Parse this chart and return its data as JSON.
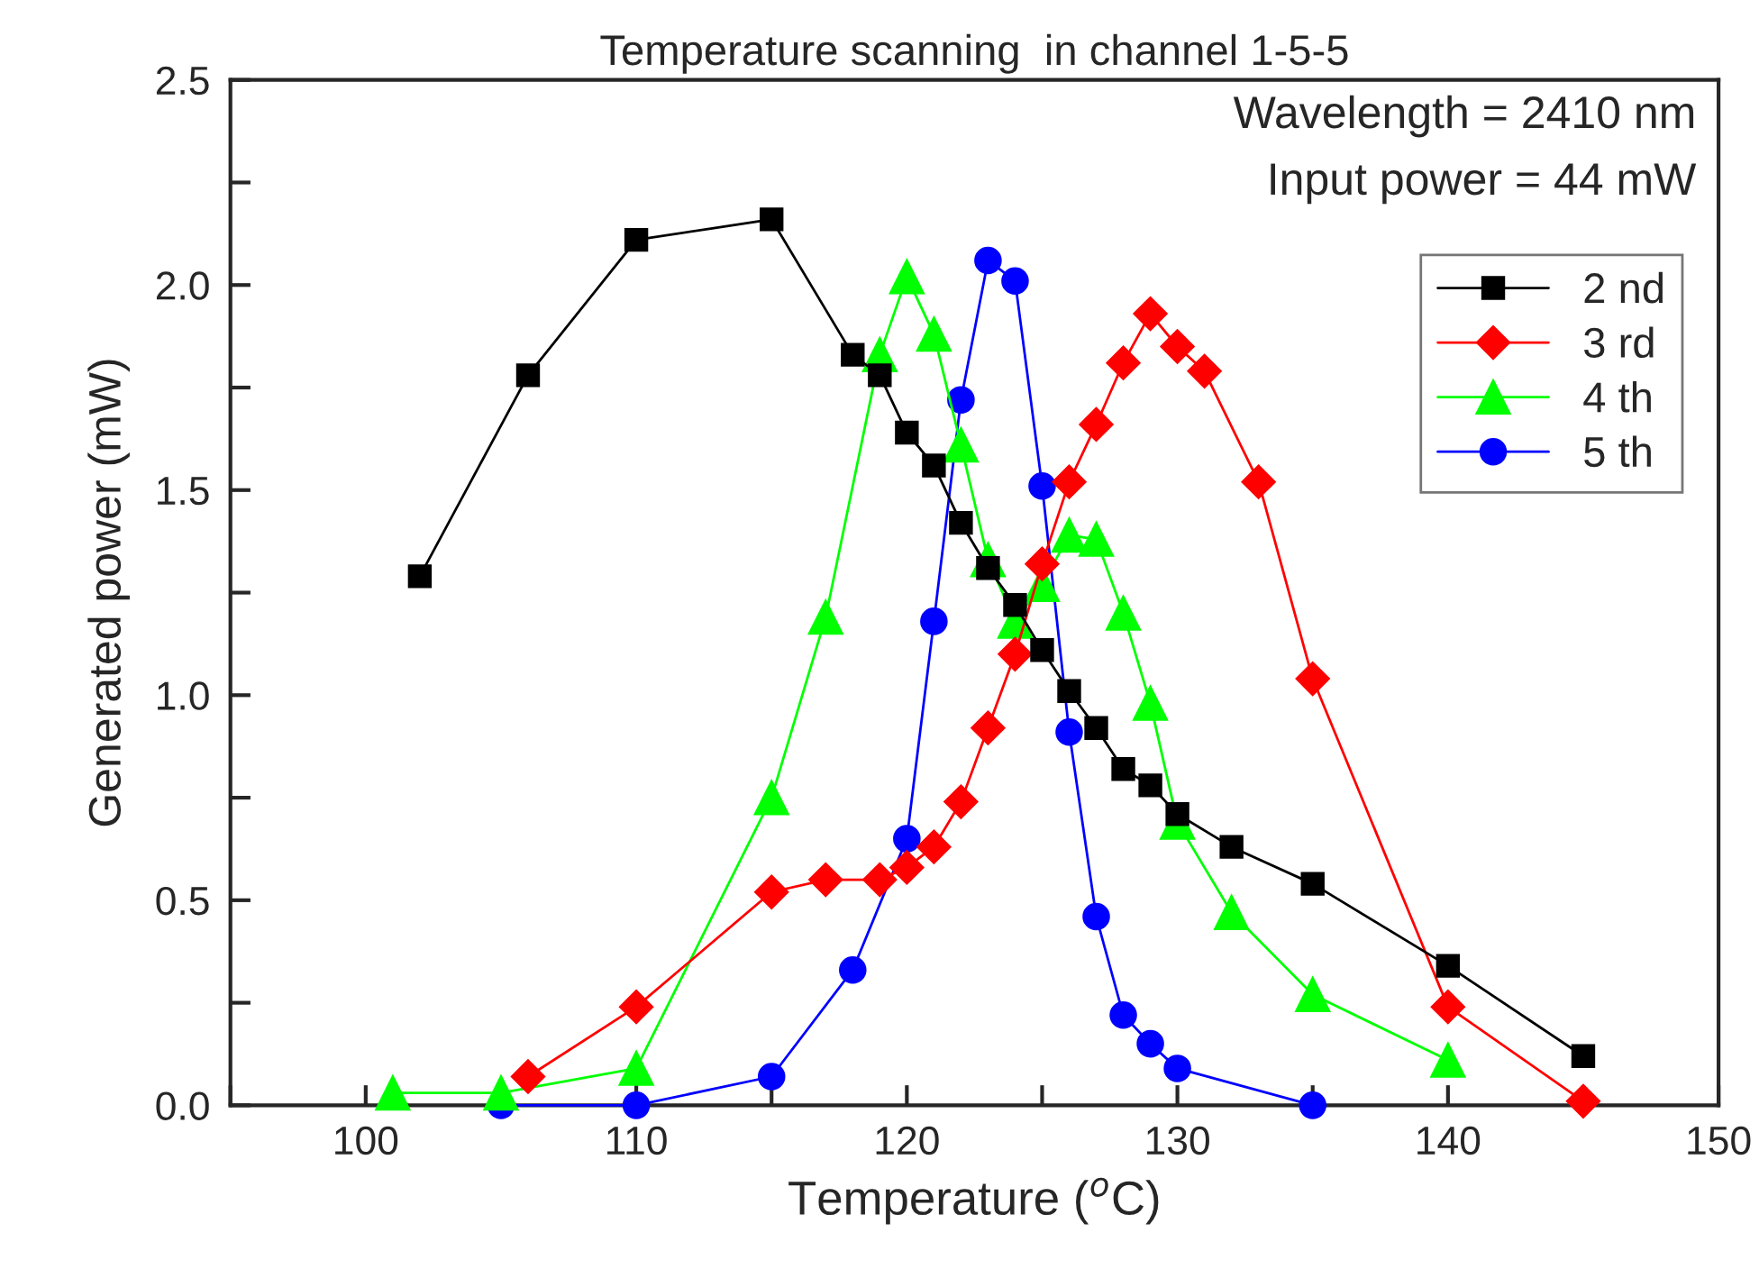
{
  "chart_data": {
    "type": "line",
    "title": "Temperature scanning  in channel 1-5-5",
    "xlabel": "Temperature ($^{o}$C)",
    "ylabel": "Generated power (mW)",
    "annotations": [
      "Wavelength = 2410 nm",
      "Input power = 44 mW"
    ],
    "xlim": [
      95,
      150
    ],
    "xticks": [
      {
        "value": 95,
        "label": null
      },
      100,
      {
        "value": 105,
        "label": null
      },
      110,
      {
        "value": 115,
        "label": null
      },
      120,
      {
        "value": 125,
        "label": null
      },
      130,
      {
        "value": 135,
        "label": null
      },
      140,
      {
        "value": 145,
        "label": null
      },
      150
    ],
    "ylim": [
      0,
      2.5
    ],
    "yticks": [
      {
        "value": 0,
        "label": "0.0"
      },
      {
        "value": 0.25,
        "label": null
      },
      {
        "value": 0.5,
        "label": "0.5"
      },
      {
        "value": 0.75,
        "label": null
      },
      {
        "value": 1.0,
        "label": "1.0"
      },
      {
        "value": 1.25,
        "label": null
      },
      {
        "value": 1.5,
        "label": "1.5"
      },
      {
        "value": 1.75,
        "label": null
      },
      {
        "value": 2.0,
        "label": "2.0"
      },
      {
        "value": 2.25,
        "label": null
      },
      {
        "value": 2.5,
        "label": "2.5"
      }
    ],
    "grid": false,
    "legend": "top right",
    "line_style": "solid",
    "series": [
      {
        "name": "2 nd",
        "color": "#000000",
        "marker": "square",
        "x": [
          102,
          106,
          110,
          115,
          118,
          119,
          120,
          121,
          122,
          123,
          124,
          125,
          126,
          127,
          128,
          129,
          130,
          132,
          135,
          140,
          145
        ],
        "values": [
          1.29,
          1.78,
          2.11,
          2.16,
          1.83,
          1.78,
          1.64,
          1.56,
          1.42,
          1.31,
          1.22,
          1.11,
          1.01,
          0.92,
          0.82,
          0.78,
          0.71,
          0.63,
          0.54,
          0.34,
          0.12
        ]
      },
      {
        "name": "3 rd",
        "color": "#ff0000",
        "marker": "diamond",
        "x": [
          106,
          110,
          115,
          117,
          119,
          120,
          121,
          122,
          123,
          124,
          125,
          126,
          127,
          128,
          129,
          130,
          131,
          133,
          135,
          140,
          145
        ],
        "values": [
          0.07,
          0.24,
          0.52,
          0.55,
          0.55,
          0.58,
          0.63,
          0.74,
          0.92,
          1.1,
          1.32,
          1.52,
          1.66,
          1.81,
          1.93,
          1.85,
          1.79,
          1.52,
          1.04,
          0.24,
          0.01
        ]
      },
      {
        "name": "4 th",
        "color": "#00ff00",
        "marker": "triangle",
        "x": [
          101,
          105,
          110,
          115,
          117,
          119,
          120,
          121,
          122,
          123,
          124,
          125,
          126,
          127,
          128,
          129,
          130,
          132,
          135,
          140
        ],
        "values": [
          0.03,
          0.03,
          0.09,
          0.75,
          1.19,
          1.83,
          2.02,
          1.88,
          1.61,
          1.33,
          1.18,
          1.27,
          1.39,
          1.38,
          1.2,
          0.98,
          0.69,
          0.47,
          0.27,
          0.11
        ]
      },
      {
        "name": "5 th",
        "color": "#0000ff",
        "marker": "circle",
        "x": [
          105,
          110,
          115,
          118,
          120,
          121,
          122,
          123,
          124,
          125,
          126,
          127,
          128,
          129,
          130,
          135
        ],
        "values": [
          0.0,
          0.0,
          0.07,
          0.33,
          0.65,
          1.18,
          1.72,
          2.06,
          2.01,
          1.51,
          0.91,
          0.46,
          0.22,
          0.15,
          0.09,
          0.0
        ]
      }
    ]
  }
}
